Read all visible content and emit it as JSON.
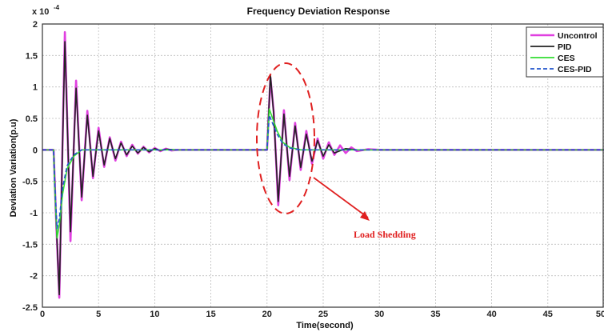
{
  "chart_data": {
    "type": "line",
    "title": "Frequency Deviation Response",
    "xlabel": "Time(second)",
    "ylabel": "Deviation Variation(p.u)",
    "y_exponent_label": "x 10",
    "y_exponent_power": "-4",
    "xlim": [
      0,
      50
    ],
    "ylim": [
      -2.5,
      2
    ],
    "x_ticks": [
      "0",
      "5",
      "10",
      "15",
      "20",
      "25",
      "30",
      "35",
      "40",
      "45",
      "50"
    ],
    "y_ticks": [
      "2",
      "1.5",
      "1",
      "0.5",
      "0",
      "-0.5",
      "-1",
      "-1.5",
      "-2",
      "-2.5"
    ],
    "grid": true,
    "legend_position": "top-right",
    "annotation": "Load Shedding",
    "series": [
      {
        "name": "Uncontrol",
        "color": "#e040e0",
        "dash": "solid",
        "x": [
          0,
          1.0,
          1.2,
          1.5,
          2.0,
          2.5,
          3.0,
          3.5,
          4.0,
          4.5,
          5.0,
          5.5,
          6.0,
          6.5,
          7.0,
          7.5,
          8.0,
          8.5,
          9.0,
          9.5,
          10.0,
          10.5,
          11.0,
          11.5,
          12.0,
          13.0,
          15.0,
          18.0,
          20.0,
          20.3,
          20.6,
          21.0,
          21.5,
          22.0,
          22.5,
          23.0,
          23.5,
          24.0,
          24.5,
          25.0,
          25.5,
          26.0,
          26.5,
          27.0,
          27.5,
          28.0,
          29.0,
          30.0,
          50.0
        ],
        "y": [
          0,
          0,
          -1.0,
          -2.35,
          1.87,
          -1.45,
          1.1,
          -0.8,
          0.62,
          -0.45,
          0.35,
          -0.27,
          0.2,
          -0.17,
          0.13,
          -0.1,
          0.08,
          -0.06,
          0.05,
          -0.04,
          0.03,
          -0.02,
          0.02,
          -0.01,
          0.0,
          0.0,
          0.0,
          0.0,
          0.0,
          1.15,
          0.6,
          -0.88,
          0.63,
          -0.48,
          0.43,
          -0.32,
          0.3,
          -0.22,
          0.18,
          -0.14,
          0.12,
          -0.08,
          0.07,
          -0.05,
          0.04,
          -0.02,
          0.01,
          0.0,
          0.0
        ]
      },
      {
        "name": "PID",
        "color": "#222222",
        "dash": "solid",
        "x": [
          0,
          1.0,
          1.2,
          1.5,
          2.0,
          2.5,
          3.0,
          3.5,
          4.0,
          4.5,
          5.0,
          5.5,
          6.0,
          6.5,
          7.0,
          7.5,
          8.0,
          8.5,
          9.0,
          9.5,
          10.0,
          10.5,
          11.0,
          12.0,
          15.0,
          20.0,
          20.3,
          20.6,
          21.0,
          21.5,
          22.0,
          22.5,
          23.0,
          23.5,
          24.0,
          24.5,
          25.0,
          25.5,
          26.0,
          27.0,
          28.0,
          50.0
        ],
        "y": [
          0,
          0,
          -1.0,
          -2.3,
          1.72,
          -1.3,
          0.98,
          -0.75,
          0.55,
          -0.42,
          0.3,
          -0.24,
          0.18,
          -0.14,
          0.11,
          -0.08,
          0.06,
          -0.05,
          0.04,
          -0.03,
          0.02,
          -0.01,
          0.01,
          0.0,
          0.0,
          0.0,
          1.2,
          0.55,
          -0.82,
          0.57,
          -0.42,
          0.38,
          -0.28,
          0.25,
          -0.18,
          0.15,
          -0.1,
          0.08,
          -0.05,
          0.02,
          0.0,
          0.0
        ]
      },
      {
        "name": "CES",
        "color": "#33dd33",
        "dash": "solid",
        "x": [
          0,
          1.0,
          1.1,
          1.3,
          1.5,
          1.8,
          2.2,
          2.8,
          3.5,
          5.0,
          20.0,
          20.2,
          20.5,
          20.9,
          21.4,
          22.0,
          23.0,
          50.0
        ],
        "y": [
          0,
          0,
          -0.6,
          -1.4,
          -1.2,
          -0.7,
          -0.3,
          -0.1,
          0.0,
          0.0,
          0.0,
          0.65,
          0.5,
          0.3,
          0.12,
          0.04,
          0.0,
          0.0
        ]
      },
      {
        "name": "CES-PID",
        "color": "#2255cc",
        "dash": "dashed",
        "x": [
          0,
          1.0,
          1.1,
          1.3,
          1.5,
          1.8,
          2.2,
          2.8,
          3.5,
          5.0,
          20.0,
          20.2,
          20.5,
          20.9,
          21.4,
          22.0,
          23.0,
          50.0
        ],
        "y": [
          0,
          0,
          -0.5,
          -1.25,
          -1.1,
          -0.6,
          -0.25,
          -0.08,
          0.0,
          0.0,
          0.0,
          0.55,
          0.42,
          0.25,
          0.1,
          0.03,
          0.0,
          0.0
        ]
      }
    ]
  }
}
